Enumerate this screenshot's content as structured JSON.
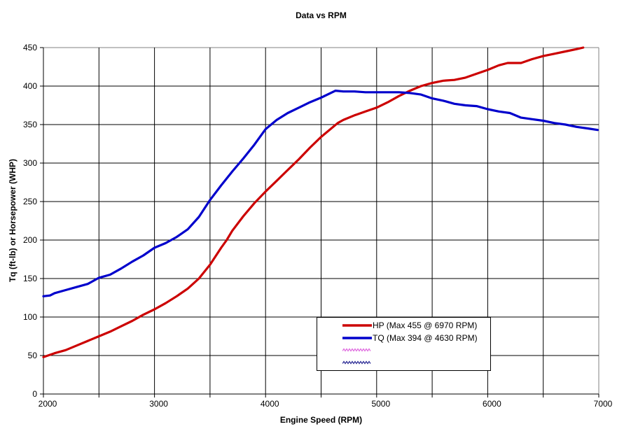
{
  "chart_data": {
    "type": "line",
    "title": "Data vs RPM",
    "xlabel": "Engine Speed (RPM)",
    "ylabel": "Tq (ft-lb) or Horsepower (WHP)",
    "xlim": [
      2000,
      7000
    ],
    "ylim": [
      0,
      450
    ],
    "x_grid_step": 500,
    "x_label_step": 1000,
    "y_grid_step": 50,
    "x_tick_labels": [
      "2000",
      "3000",
      "4000",
      "5000",
      "6000",
      "7000"
    ],
    "y_tick_labels": [
      "0",
      "50",
      "100",
      "150",
      "200",
      "250",
      "300",
      "350",
      "400",
      "450"
    ],
    "grid": true,
    "legend_position": "inside-bottom-right",
    "colors": {
      "grid": "#000000",
      "axis": "#000000",
      "plot_border": "#808080",
      "background": "#ffffff",
      "hp": "#cc0000",
      "tq": "#0000cc",
      "extra_magenta": "#e070e0",
      "extra_navy": "#333399"
    },
    "series": [
      {
        "id": "hp",
        "name": "HP (Max 455 @ 6970 RPM)",
        "color": "#cc0000",
        "line_style": "solid",
        "max": {
          "value": 455,
          "rpm": 6970
        },
        "points": [
          [
            2000,
            48
          ],
          [
            2100,
            53
          ],
          [
            2200,
            57
          ],
          [
            2300,
            63
          ],
          [
            2400,
            69
          ],
          [
            2500,
            75
          ],
          [
            2600,
            81
          ],
          [
            2700,
            88
          ],
          [
            2800,
            95
          ],
          [
            2900,
            103
          ],
          [
            3000,
            110
          ],
          [
            3100,
            118
          ],
          [
            3200,
            127
          ],
          [
            3300,
            137
          ],
          [
            3400,
            150
          ],
          [
            3500,
            168
          ],
          [
            3600,
            190
          ],
          [
            3650,
            200
          ],
          [
            3700,
            212
          ],
          [
            3800,
            231
          ],
          [
            3900,
            248
          ],
          [
            4000,
            263
          ],
          [
            4100,
            277
          ],
          [
            4200,
            291
          ],
          [
            4300,
            305
          ],
          [
            4400,
            320
          ],
          [
            4500,
            334
          ],
          [
            4650,
            352
          ],
          [
            4700,
            356
          ],
          [
            4800,
            362
          ],
          [
            4900,
            367
          ],
          [
            5000,
            372
          ],
          [
            5100,
            379
          ],
          [
            5200,
            387
          ],
          [
            5300,
            394
          ],
          [
            5400,
            400
          ],
          [
            5500,
            404
          ],
          [
            5600,
            407
          ],
          [
            5700,
            408
          ],
          [
            5800,
            411
          ],
          [
            5900,
            416
          ],
          [
            6000,
            421
          ],
          [
            6100,
            427
          ],
          [
            6180,
            430
          ],
          [
            6300,
            430
          ],
          [
            6400,
            435
          ],
          [
            6500,
            439
          ],
          [
            6600,
            442
          ],
          [
            6700,
            445
          ],
          [
            6800,
            448
          ],
          [
            6860,
            450
          ]
        ]
      },
      {
        "id": "tq",
        "name": "TQ (Max 394 @ 4630 RPM)",
        "color": "#0000cc",
        "line_style": "solid",
        "max": {
          "value": 394,
          "rpm": 4630
        },
        "points": [
          [
            2000,
            127
          ],
          [
            2060,
            128
          ],
          [
            2100,
            131
          ],
          [
            2200,
            135
          ],
          [
            2300,
            139
          ],
          [
            2400,
            143
          ],
          [
            2500,
            151
          ],
          [
            2600,
            155
          ],
          [
            2700,
            163
          ],
          [
            2800,
            172
          ],
          [
            2900,
            180
          ],
          [
            3000,
            190
          ],
          [
            3100,
            196
          ],
          [
            3200,
            204
          ],
          [
            3300,
            214
          ],
          [
            3400,
            230
          ],
          [
            3500,
            252
          ],
          [
            3600,
            271
          ],
          [
            3700,
            289
          ],
          [
            3800,
            306
          ],
          [
            3900,
            324
          ],
          [
            4000,
            344
          ],
          [
            4100,
            356
          ],
          [
            4200,
            365
          ],
          [
            4300,
            372
          ],
          [
            4400,
            379
          ],
          [
            4500,
            385
          ],
          [
            4630,
            394
          ],
          [
            4700,
            393
          ],
          [
            4800,
            393
          ],
          [
            4900,
            392
          ],
          [
            5000,
            392
          ],
          [
            5100,
            392
          ],
          [
            5200,
            392
          ],
          [
            5300,
            391
          ],
          [
            5400,
            389
          ],
          [
            5500,
            384
          ],
          [
            5600,
            381
          ],
          [
            5700,
            377
          ],
          [
            5800,
            375
          ],
          [
            5900,
            374
          ],
          [
            6000,
            370
          ],
          [
            6100,
            367
          ],
          [
            6200,
            365
          ],
          [
            6300,
            359
          ],
          [
            6400,
            357
          ],
          [
            6500,
            355
          ],
          [
            6600,
            352
          ],
          [
            6700,
            350
          ],
          [
            6800,
            347
          ],
          [
            6900,
            345
          ],
          [
            6990,
            343
          ]
        ]
      },
      {
        "id": "extra-magenta",
        "name": "",
        "color": "#e070e0",
        "line_style": "zigzag",
        "points": []
      },
      {
        "id": "extra-navy",
        "name": "",
        "color": "#333399",
        "line_style": "zigzag",
        "points": []
      }
    ]
  }
}
